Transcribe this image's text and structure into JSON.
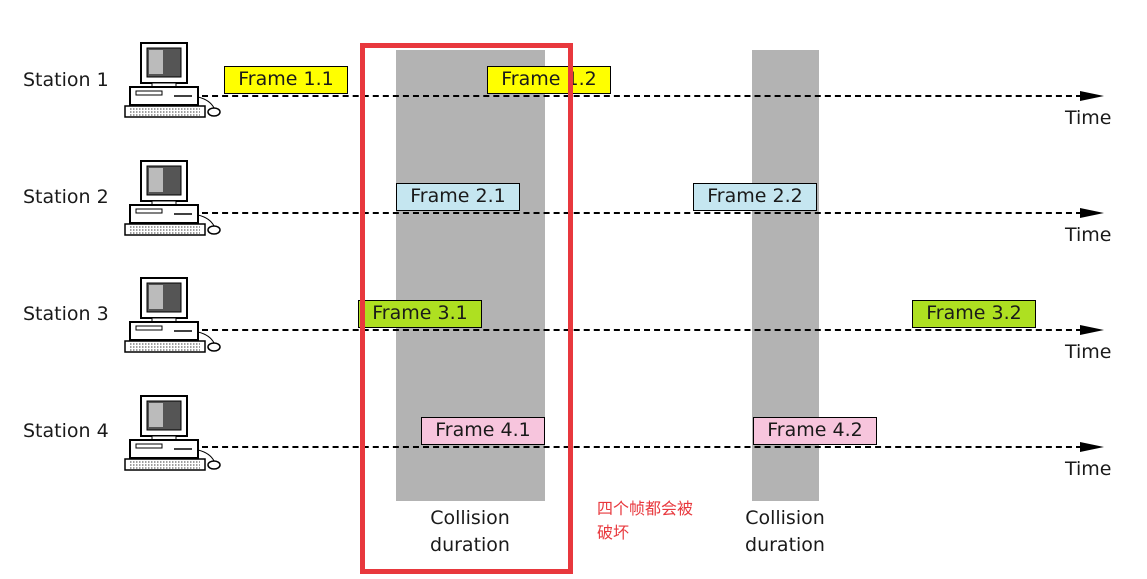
{
  "stations": [
    {
      "label": "Station 1",
      "time_label": "Time"
    },
    {
      "label": "Station 2",
      "time_label": "Time"
    },
    {
      "label": "Station 3",
      "time_label": "Time"
    },
    {
      "label": "Station 4",
      "time_label": "Time"
    }
  ],
  "frames": {
    "f11": {
      "label": "Frame 1.1",
      "color": "#ffff00"
    },
    "f12": {
      "label": "Frame 1.2",
      "color": "#ffff00"
    },
    "f21": {
      "label": "Frame 2.1",
      "color": "#c5e6f0"
    },
    "f22": {
      "label": "Frame 2.2",
      "color": "#c5e6f0"
    },
    "f31": {
      "label": "Frame 3.1",
      "color": "#aee021"
    },
    "f32": {
      "label": "Frame 3.2",
      "color": "#aee021"
    },
    "f41": {
      "label": "Frame 4.1",
      "color": "#f7c5dd"
    },
    "f42": {
      "label": "Frame 4.2",
      "color": "#f7c5dd"
    }
  },
  "collisions": [
    {
      "line1": "Collision",
      "line2": "duration"
    },
    {
      "line1": "Collision",
      "line2": "duration"
    }
  ],
  "annotation": {
    "line1": "四个帧都会被",
    "line2": "破坏",
    "color": "#e8383d"
  },
  "colors": {
    "collision_band": "#b3b3b3",
    "highlight_box": "#e8383d"
  }
}
